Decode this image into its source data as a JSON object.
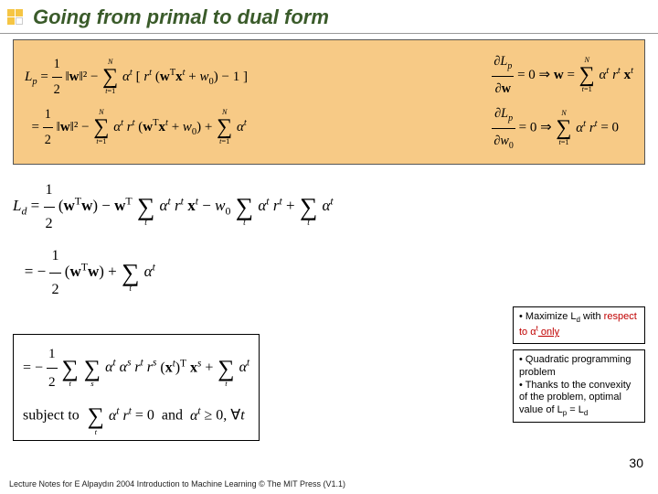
{
  "title": "Going from primal to dual form",
  "eqbox": {
    "left_line1": "L_p = ½‖w‖² − Σ_{t=1}^{N} αᵗ [ rᵗ (wᵀxᵗ + w₀) − 1 ]",
    "left_line2": "   = ½‖w‖² − Σ_{t=1}^{N} αᵗ rᵗ (wᵀxᵗ + w₀) + Σ_{t=1}^{N} αᵗ",
    "right_line1": "∂L_p / ∂w = 0  ⇒  w = Σ_{t=1}^{N} αᵗ rᵗ xᵗ",
    "right_line2": "∂L_p / ∂w₀ = 0  ⇒  Σ_{t=1}^{N} αᵗ rᵗ = 0"
  },
  "ld": {
    "line1": "L_d = ½ (wᵀw) − wᵀ Σ_t αᵗ rᵗ xᵗ − w₀ Σ_t αᵗ rᵗ + Σ_t αᵗ",
    "line2": "    = −½ (wᵀw) + Σ_t αᵗ",
    "boxed_line1": "    = −½ Σ_t Σ_s αᵗ αˢ rᵗ rˢ (xᵗ)ᵀ xˢ + Σ_t αᵗ",
    "boxed_line2": "subject to  Σ_t αᵗ rᵗ = 0  and  αᵗ ≥ 0, ∀t"
  },
  "note1": {
    "bullet": "• Maximize L",
    "sub_d": "d",
    "rest1": " with ",
    "respect": "respect to ",
    "alpha": "α",
    "sup_t": "t",
    "only": " only"
  },
  "note2": {
    "b1": "• Quadratic programming problem",
    "b2": "• Thanks to the convexity of the problem, optimal value of L",
    "p": "p",
    "eq": " = L",
    "d": "d"
  },
  "page": "30",
  "footer": "Lecture Notes for E Alpaydın 2004 Introduction to Machine Learning © The MIT Press (V1.1)"
}
